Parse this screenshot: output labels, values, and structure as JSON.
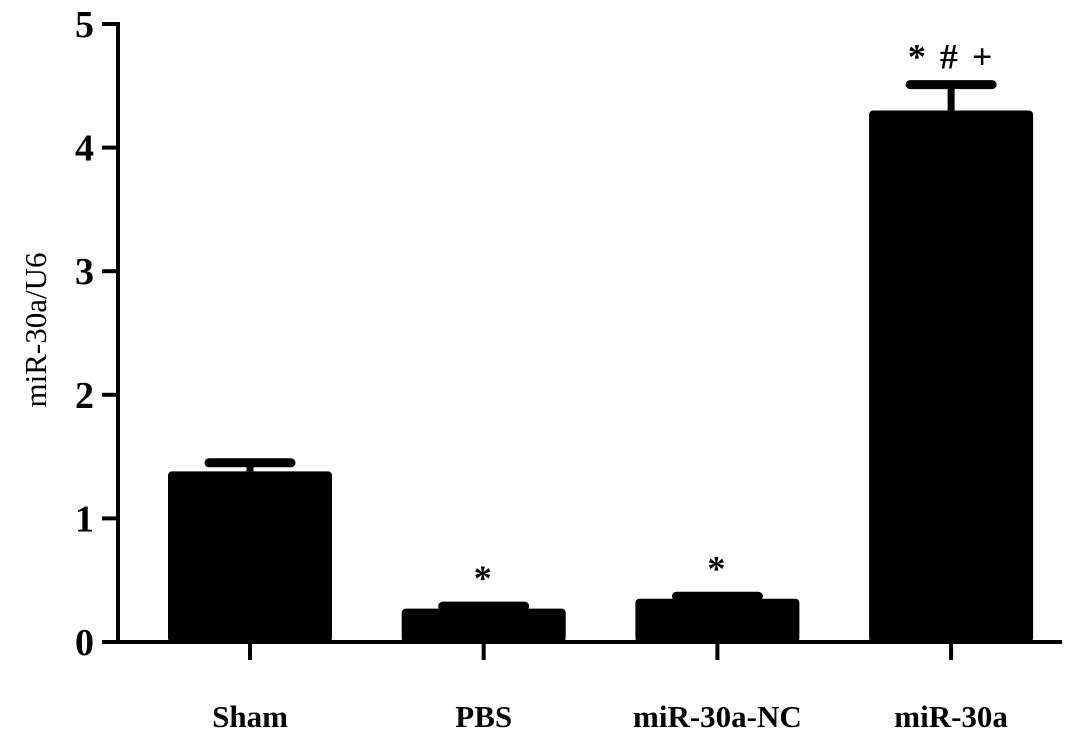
{
  "chart_data": {
    "type": "bar",
    "categories": [
      "Sham",
      "PBS",
      "miR-30a-NC",
      "miR-30a"
    ],
    "values": [
      1.38,
      0.27,
      0.35,
      4.3
    ],
    "error": [
      0.07,
      0.02,
      0.02,
      0.21
    ],
    "annotations": [
      "",
      "*",
      "*",
      "*#+"
    ],
    "xlabel": "",
    "ylabel": "miR-30a/U6",
    "ylim": [
      0,
      5
    ],
    "yticks": [
      0,
      1,
      2,
      3,
      4,
      5
    ],
    "grid": false,
    "legend": "none",
    "bar_color": "#000000"
  }
}
